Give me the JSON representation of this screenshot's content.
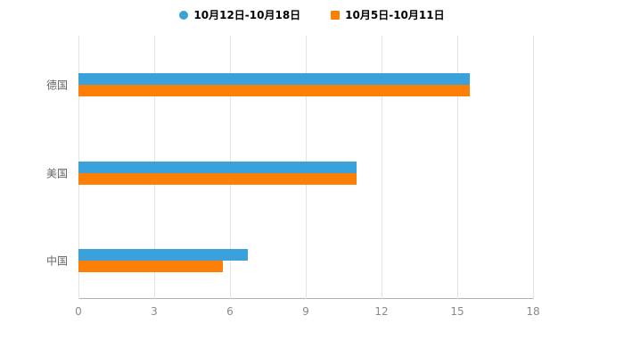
{
  "chart_data": {
    "type": "bar",
    "orientation": "horizontal",
    "title": "",
    "xlabel": "",
    "ylabel": "",
    "categories": [
      "德国",
      "美国",
      "中国"
    ],
    "series": [
      {
        "name": "10月12日-10月18日",
        "color": "#3ba1da",
        "marker": "circle",
        "values": [
          15.5,
          11,
          6.7
        ]
      },
      {
        "name": "10月5日-10月11日",
        "color": "#fc8008",
        "marker": "square",
        "values": [
          15.5,
          11,
          5.7
        ]
      }
    ],
    "xlim": [
      0,
      18
    ],
    "xticks": [
      0,
      3,
      6,
      9,
      12,
      15,
      18
    ],
    "grid": true,
    "legend_position": "top"
  },
  "colors": {
    "background": "#ffffff",
    "gridline": "#e3e3e3",
    "axis_line": "#b0b0b0",
    "tick_label": "#8a8a8a",
    "category_label": "#666666",
    "legend_text": "#000000"
  }
}
